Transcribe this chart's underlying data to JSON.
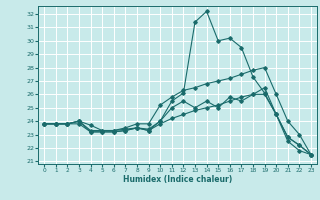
{
  "title": "",
  "xlabel": "Humidex (Indice chaleur)",
  "ylabel": "",
  "bg_color": "#c8eaea",
  "line_color": "#1a6b6b",
  "grid_color": "#ffffff",
  "x_ticks": [
    0,
    1,
    2,
    3,
    4,
    5,
    6,
    7,
    8,
    9,
    10,
    11,
    12,
    13,
    14,
    15,
    16,
    17,
    18,
    19,
    20,
    21,
    22,
    23
  ],
  "y_ticks": [
    21,
    22,
    23,
    24,
    25,
    26,
    27,
    28,
    29,
    30,
    31,
    32
  ],
  "ylim": [
    20.8,
    32.6
  ],
  "xlim": [
    -0.5,
    23.5
  ],
  "lines": [
    {
      "x": [
        0,
        1,
        2,
        3,
        4,
        5,
        6,
        7,
        8,
        9,
        10,
        11,
        12,
        13,
        14,
        15,
        16,
        17,
        18,
        19,
        20,
        21,
        22,
        23
      ],
      "y": [
        23.8,
        23.8,
        23.8,
        24.0,
        23.7,
        23.3,
        23.3,
        23.4,
        23.5,
        23.4,
        24.0,
        25.5,
        26.1,
        31.4,
        32.2,
        30.0,
        30.2,
        29.5,
        27.3,
        26.1,
        24.5,
        22.8,
        22.2,
        21.5
      ]
    },
    {
      "x": [
        0,
        1,
        2,
        3,
        4,
        5,
        6,
        7,
        8,
        9,
        10,
        11,
        12,
        13,
        14,
        15,
        16,
        17,
        18,
        19,
        20,
        21,
        22,
        23
      ],
      "y": [
        23.8,
        23.8,
        23.8,
        24.0,
        23.3,
        23.3,
        23.3,
        23.5,
        23.8,
        23.8,
        25.2,
        25.8,
        26.3,
        26.5,
        26.8,
        27.0,
        27.2,
        27.5,
        27.8,
        28.0,
        26.0,
        24.0,
        23.0,
        21.5
      ]
    },
    {
      "x": [
        0,
        1,
        2,
        3,
        4,
        5,
        6,
        7,
        8,
        9,
        10,
        11,
        12,
        13,
        14,
        15,
        16,
        17,
        18,
        19,
        20,
        21,
        22,
        23
      ],
      "y": [
        23.8,
        23.8,
        23.8,
        24.0,
        23.2,
        23.2,
        23.2,
        23.3,
        23.5,
        23.3,
        24.0,
        25.0,
        25.5,
        25.0,
        25.5,
        25.0,
        25.8,
        25.5,
        26.0,
        26.0,
        24.5,
        22.8,
        22.2,
        21.5
      ]
    },
    {
      "x": [
        0,
        1,
        2,
        3,
        4,
        5,
        6,
        7,
        8,
        9,
        10,
        11,
        12,
        13,
        14,
        15,
        16,
        17,
        18,
        19,
        20,
        21,
        22,
        23
      ],
      "y": [
        23.8,
        23.8,
        23.8,
        23.8,
        23.2,
        23.2,
        23.2,
        23.3,
        23.5,
        23.3,
        23.8,
        24.2,
        24.5,
        24.8,
        25.0,
        25.2,
        25.5,
        25.8,
        26.0,
        26.5,
        24.5,
        22.5,
        21.8,
        21.5
      ]
    }
  ]
}
